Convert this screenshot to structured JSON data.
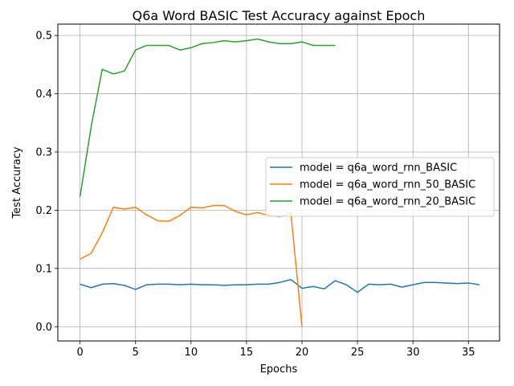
{
  "chart_data": {
    "type": "line",
    "title": "Q6a Word BASIC Test Accuracy against Epoch",
    "xlabel": "Epochs",
    "ylabel": "Test Accuracy",
    "xlim": [
      -2,
      37.8
    ],
    "ylim": [
      -0.0245,
      0.5195
    ],
    "xticks": [
      0,
      5,
      10,
      15,
      20,
      25,
      30,
      35
    ],
    "yticks": [
      0.0,
      0.1,
      0.2,
      0.3,
      0.4,
      0.5
    ],
    "ytick_labels": [
      "0.0",
      "0.1",
      "0.2",
      "0.3",
      "0.4",
      "0.5"
    ],
    "grid": true,
    "legend_position": "center-right",
    "series": [
      {
        "name": "model = q6a_word_rnn_BASIC",
        "color": "#1f77b4",
        "x": [
          0,
          1,
          2,
          3,
          4,
          5,
          6,
          7,
          8,
          9,
          10,
          11,
          12,
          13,
          14,
          15,
          16,
          17,
          18,
          19,
          20,
          21,
          22,
          23,
          24,
          25,
          26,
          27,
          28,
          29,
          30,
          31,
          32,
          33,
          34,
          35,
          36
        ],
        "y": [
          0.073,
          0.067,
          0.073,
          0.074,
          0.071,
          0.064,
          0.072,
          0.073,
          0.073,
          0.072,
          0.073,
          0.072,
          0.072,
          0.071,
          0.072,
          0.072,
          0.073,
          0.073,
          0.076,
          0.081,
          0.066,
          0.069,
          0.065,
          0.079,
          0.072,
          0.059,
          0.073,
          0.072,
          0.073,
          0.068,
          0.072,
          0.076,
          0.076,
          0.075,
          0.074,
          0.075,
          0.072
        ]
      },
      {
        "name": "model = q6a_word_rnn_50_BASIC",
        "color": "#ff7f0e",
        "x": [
          0,
          1,
          2,
          3,
          4,
          5,
          6,
          7,
          8,
          9,
          10,
          11,
          12,
          13,
          14,
          15,
          16,
          17,
          18,
          19,
          20
        ],
        "y": [
          0.116,
          0.126,
          0.161,
          0.205,
          0.202,
          0.205,
          0.192,
          0.182,
          0.181,
          0.191,
          0.205,
          0.204,
          0.208,
          0.208,
          0.198,
          0.192,
          0.196,
          0.191,
          0.189,
          0.195,
          0.0
        ]
      },
      {
        "name": "model = q6a_word_rnn_20_BASIC",
        "color": "#2ca02c",
        "x": [
          0,
          1,
          2,
          3,
          4,
          5,
          6,
          7,
          8,
          9,
          10,
          11,
          12,
          13,
          14,
          15,
          16,
          17,
          18,
          19,
          20,
          21,
          22,
          23
        ],
        "y": [
          0.223,
          0.343,
          0.442,
          0.434,
          0.439,
          0.475,
          0.483,
          0.483,
          0.483,
          0.475,
          0.479,
          0.486,
          0.488,
          0.491,
          0.489,
          0.491,
          0.494,
          0.489,
          0.486,
          0.486,
          0.489,
          0.483,
          0.483,
          0.483
        ]
      }
    ]
  }
}
